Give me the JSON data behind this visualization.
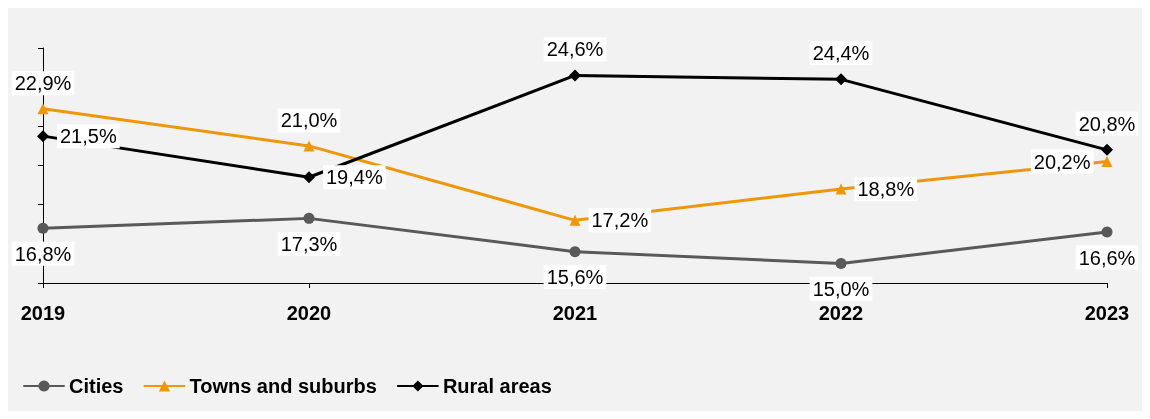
{
  "chart_data": {
    "type": "line",
    "categories": [
      "2019",
      "2020",
      "2021",
      "2022",
      "2023"
    ],
    "series": [
      {
        "name": "Cities",
        "color": "#595959",
        "marker": "circle",
        "values": [
          16.8,
          17.3,
          15.6,
          15.0,
          16.6
        ],
        "value_labels": [
          "16,8%",
          "17,3%",
          "15,6%",
          "15,0%",
          "16,6%"
        ]
      },
      {
        "name": "Towns and suburbs",
        "color": "#f0960a",
        "marker": "triangle",
        "values": [
          22.9,
          21.0,
          17.2,
          18.8,
          20.2
        ],
        "value_labels": [
          "22,9%",
          "21,0%",
          "17,2%",
          "18,8%",
          "20,2%"
        ]
      },
      {
        "name": "Rural areas",
        "color": "#000000",
        "marker": "diamond",
        "values": [
          21.5,
          19.4,
          24.6,
          24.4,
          20.8
        ],
        "value_labels": [
          "21,5%",
          "19,4%",
          "24,6%",
          "24,4%",
          "20,8%"
        ]
      }
    ],
    "ylim": [
      14,
      26
    ],
    "yticks": [
      {
        "value": 14,
        "label": null
      },
      {
        "value": 16,
        "label": null
      },
      {
        "value": 18,
        "label": null
      },
      {
        "value": 20,
        "label": null
      },
      {
        "value": 22,
        "label": null
      },
      {
        "value": 24,
        "label": null
      },
      {
        "value": 26,
        "label": null
      }
    ],
    "tick_labels": "x",
    "grid": false,
    "legend": "bottom left"
  }
}
